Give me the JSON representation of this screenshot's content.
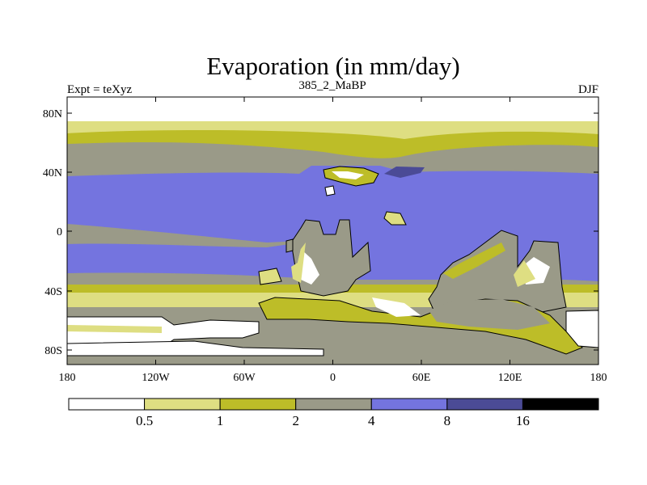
{
  "title": "Evaporation (in mm/day)",
  "subtitle_left": "Expt = teXyz",
  "subtitle_center": "385_2_MaBP",
  "subtitle_right": "DJF",
  "map": {
    "y_tick_labels": [
      "80N",
      "40N",
      "0",
      "40S",
      "80S"
    ],
    "x_tick_labels": [
      "180",
      "120W",
      "60W",
      "0",
      "60E",
      "120E",
      "180"
    ]
  },
  "colorbar": {
    "levels": [
      "0.5",
      "1",
      "2",
      "4",
      "8",
      "16"
    ],
    "colors": [
      "#ffffff",
      "#dede82",
      "#bdbd28",
      "#9a9a88",
      "#7474df",
      "#4b4b96",
      "#000000"
    ]
  },
  "palette": {
    "white": "#ffffff",
    "light_yellow": "#dede82",
    "olive": "#bdbd28",
    "gray": "#9a9a88",
    "blue": "#7474df",
    "dark_blue": "#4b4b96"
  }
}
